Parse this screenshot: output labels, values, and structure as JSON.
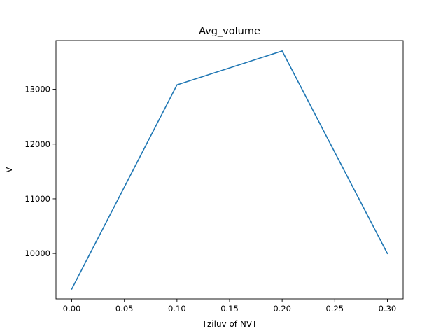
{
  "chart_data": {
    "type": "line",
    "title": "Avg_volume",
    "xlabel": "Tziluv of NVT",
    "ylabel": "V",
    "xlim": [
      -0.015,
      0.315
    ],
    "ylim": [
      9170,
      13890
    ],
    "x_ticks": [
      0.0,
      0.05,
      0.1,
      0.15,
      0.2,
      0.25,
      0.3
    ],
    "x_tick_labels": [
      "0.00",
      "0.05",
      "0.10",
      "0.15",
      "0.20",
      "0.25",
      "0.30"
    ],
    "y_ticks": [
      10000,
      11000,
      12000,
      13000
    ],
    "y_tick_labels": [
      "10000",
      "11000",
      "12000",
      "13000"
    ],
    "grid": false,
    "legend": "none",
    "series": [
      {
        "color": "#1f77b4",
        "x": [
          0.0,
          0.1,
          0.2,
          0.3
        ],
        "y": [
          9350,
          13080,
          13700,
          10000
        ]
      }
    ]
  }
}
